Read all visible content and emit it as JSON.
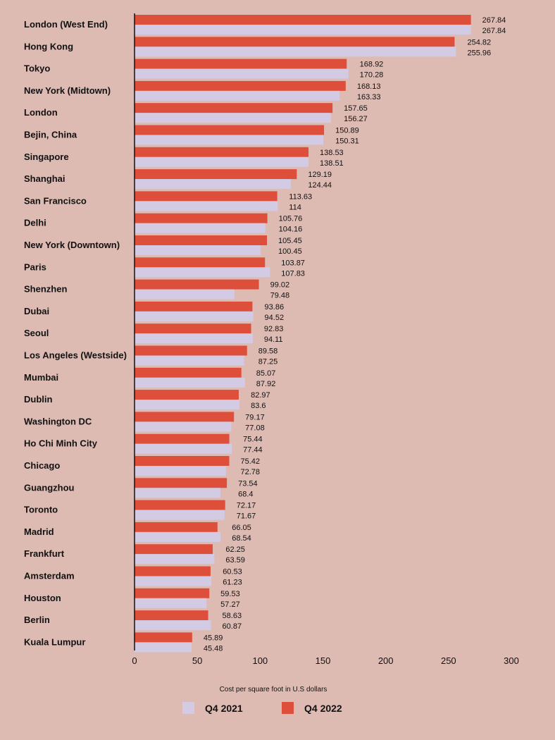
{
  "chart_data": {
    "type": "bar",
    "orientation": "horizontal",
    "title": "",
    "xlabel": "Cost per square foot in U.S dollars",
    "ylabel": "",
    "xlim": [
      0,
      300
    ],
    "xticks": [
      0,
      50,
      100,
      150,
      200,
      250,
      300
    ],
    "grid": false,
    "legend_position": "bottom",
    "categories": [
      "London (West End)",
      "Hong Kong",
      "Tokyo",
      "New York (Midtown)",
      "London",
      "Bejin, China",
      "Singapore",
      "Shanghai",
      "San Francisco",
      "Delhi",
      "New York (Downtown)",
      "Paris",
      "Shenzhen",
      "Dubai",
      "Seoul",
      "Los Angeles (Westside)",
      "Mumbai",
      "Dublin",
      "Washington DC",
      "Ho Chi Minh City",
      "Chicago",
      "Guangzhou",
      "Toronto",
      "Madrid",
      "Frankfurt",
      "Amsterdam",
      "Houston",
      "Berlin",
      "Kuala Lumpur"
    ],
    "series": [
      {
        "name": "Q4 2022",
        "color": "#dd4f3a",
        "values": [
          267.84,
          254.82,
          168.92,
          168.13,
          157.65,
          150.89,
          138.53,
          129.19,
          113.63,
          105.76,
          105.45,
          103.87,
          99.02,
          93.86,
          92.83,
          89.58,
          85.07,
          82.97,
          79.17,
          75.44,
          75.42,
          73.54,
          72.17,
          66.05,
          62.25,
          60.53,
          59.53,
          58.63,
          45.89
        ],
        "labels": [
          "267.84",
          "254.82",
          "168.92",
          "168.13",
          "157.65",
          "150.89",
          "138.53",
          "129.19",
          "113.63",
          "105.76",
          "105.45",
          "103.87",
          "99.02",
          "93.86",
          "92.83",
          "89.58",
          "85.07",
          "82.97",
          "79.17",
          "75.44",
          "75.42",
          "73.54",
          "72.17",
          "66.05",
          "62.25",
          "60.53",
          "59.53",
          "58.63",
          "45.89"
        ]
      },
      {
        "name": "Q4 2021",
        "color": "#d2cbe3",
        "values": [
          267.84,
          255.96,
          170.28,
          163.33,
          156.27,
          150.31,
          138.51,
          124.44,
          114,
          104.16,
          100.45,
          107.83,
          79.48,
          94.52,
          94.11,
          87.25,
          87.92,
          83.6,
          77.08,
          77.44,
          72.78,
          68.4,
          71.67,
          68.54,
          63.59,
          61.23,
          57.27,
          60.87,
          45.48
        ],
        "labels": [
          "267.84",
          "255.96",
          "170.28",
          "163.33",
          "156.27",
          "150.31",
          "138.51",
          "124.44",
          "114",
          "104.16",
          "100.45",
          "107.83",
          "79.48",
          "94.52",
          "94.11",
          "87.25",
          "87.92",
          "83.6",
          "77.08",
          "77.44",
          "72.78",
          "68.4",
          "71.67",
          "68.54",
          "63.59",
          "61.23",
          "57.27",
          "60.87",
          "45.48"
        ]
      }
    ],
    "legend": [
      {
        "name": "Q4 2021",
        "color": "#d2cbe3"
      },
      {
        "name": "Q4 2022",
        "color": "#dd4f3a"
      }
    ],
    "background": "#ddbbb3"
  }
}
